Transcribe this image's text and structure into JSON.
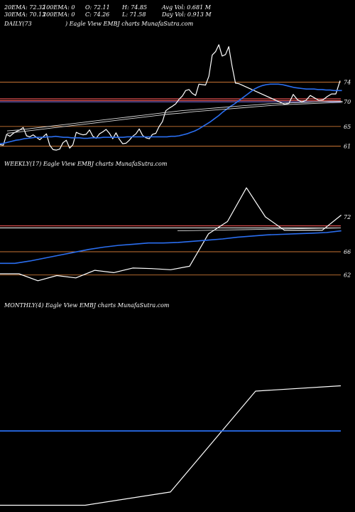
{
  "header": {
    "row1": [
      {
        "key": "ema20",
        "text": "20EMA: 72.32"
      },
      {
        "key": "ema100",
        "text": "100EMA: 0"
      },
      {
        "key": "open",
        "text": "O: 72.11"
      },
      {
        "key": "high",
        "text": "H: 74.85"
      },
      {
        "key": "avgvol",
        "text": "Avg Vol: 0.681 M"
      }
    ],
    "row2": [
      {
        "key": "ema30",
        "text": "30EMA: 70.13"
      },
      {
        "key": "ema200",
        "text": "200EMA: 0"
      },
      {
        "key": "close",
        "text": "C: 74.26"
      },
      {
        "key": "low",
        "text": "L: 71.58"
      },
      {
        "key": "dayvol",
        "text": "Day Vol: 0.913 M"
      }
    ]
  },
  "panels": {
    "daily": {
      "label": "DAILY(73",
      "watermark": ") Eagle  View  EMBJ charts MunafaSutra.com"
    },
    "weekly": {
      "label": "WEEKLY(17) Eagle  View  EMBJ charts MunafaSutra.com"
    },
    "monthly": {
      "label": "MONTHLY(4) Eagle  View  EMBJ charts MunafaSutra.com"
    }
  },
  "colors": {
    "background": "#000000",
    "price": "#ffffff",
    "ema_blue": "#2a6ef0",
    "ema_slow": "#d8d8d8",
    "level_red": "#e05050",
    "level_orange": "#c87533"
  },
  "chart_data": [
    {
      "type": "line",
      "title": "DAILY",
      "ticks": [
        74,
        70,
        65,
        61
      ],
      "ylim": [
        59.2,
        84.9
      ],
      "levels": [
        {
          "value": 74,
          "color": "#c87533"
        },
        {
          "value": 70.6,
          "color": "#e05050"
        },
        {
          "value": 70.25,
          "color": "#e05050"
        },
        {
          "value": 70.0,
          "color": "#8080ff"
        },
        {
          "value": 65,
          "color": "#c87533"
        },
        {
          "value": 61,
          "color": "#c87533"
        }
      ],
      "series": [
        {
          "role": "price",
          "color": "#ffffff",
          "values": [
            61.3,
            61.2,
            63.4,
            63.0,
            63.6,
            64.0,
            64.3,
            64.8,
            63.1,
            62.9,
            63.3,
            62.8,
            62.3,
            62.9,
            63.5,
            61.2,
            60.3,
            60.2,
            60.4,
            61.7,
            62.2,
            60.6,
            61.3,
            63.8,
            63.5,
            63.3,
            63.4,
            64.3,
            63.0,
            62.6,
            63.5,
            63.9,
            64.4,
            63.6,
            62.5,
            63.7,
            62.4,
            61.5,
            61.6,
            62.2,
            63.0,
            63.5,
            64.5,
            63.2,
            62.7,
            62.5,
            63.4,
            63.6,
            65.0,
            66.0,
            68.2,
            68.7,
            69.1,
            69.6,
            70.5,
            71.2,
            72.3,
            72.5,
            71.7,
            71.3,
            73.6,
            73.5,
            73.4,
            75.2,
            79.5,
            80.2,
            81.6,
            79.3,
            79.6,
            81.2,
            77.2,
            73.8,
            73.7
          ],
          "tail": [
            69.5,
            69.7,
            71.5,
            70.4,
            70.0,
            70.3,
            71.3,
            70.8,
            70.3,
            70.4,
            71.1,
            71.6,
            71.6,
            74.3
          ]
        },
        {
          "role": "ema_fast",
          "color": "#2a6ef0",
          "values": [
            61.5,
            61.6,
            61.8,
            62.0,
            62.2,
            62.3,
            62.5,
            62.6,
            62.7,
            62.8,
            62.8,
            62.8,
            62.9,
            62.9,
            63.0,
            62.9,
            62.8,
            62.8,
            62.7,
            62.7,
            62.7,
            62.6,
            62.6,
            62.7,
            62.7,
            62.7,
            62.8,
            62.8,
            62.8,
            62.8,
            62.8,
            62.8,
            62.9,
            62.9,
            62.9,
            62.9,
            62.9,
            62.9,
            62.9,
            62.9,
            62.9,
            62.9,
            62.9,
            63.0,
            63.0,
            63.1,
            63.3,
            63.5,
            63.8,
            64.1,
            64.5,
            65.0,
            65.5,
            66.0,
            66.6,
            67.2,
            67.9,
            68.5,
            69.1,
            69.6,
            70.2,
            70.8,
            71.4,
            72.0,
            72.6,
            73.0,
            73.3,
            73.5,
            73.6,
            73.6,
            73.6,
            73.5,
            73.3,
            73.1,
            72.9,
            72.8,
            72.7,
            72.6,
            72.6,
            72.6,
            72.5,
            72.5,
            72.4,
            72.4,
            72.3,
            72.3,
            72.3
          ]
        },
        {
          "role": "ema_slow_1",
          "color": "#d8d8d8",
          "values": [
            64.1,
            64.3,
            64.6,
            64.9,
            65.2,
            65.5,
            65.8,
            66.1,
            66.4,
            66.7,
            67.0,
            67.3,
            67.6,
            67.9,
            68.2,
            68.4,
            68.6,
            68.8,
            69.0,
            69.2,
            69.4,
            69.6,
            69.7,
            69.8,
            69.9,
            70.0,
            70.1,
            70.1
          ]
        },
        {
          "role": "ema_slow_2",
          "color": "#d8d8d8",
          "values": [
            63.6,
            63.9,
            64.2,
            64.5,
            64.8,
            65.1,
            65.4,
            65.7,
            66.0,
            66.3,
            66.6,
            66.9,
            67.2,
            67.5,
            67.7,
            68.0,
            68.2,
            68.4,
            68.6,
            68.8,
            69.0,
            69.2,
            69.4,
            69.5,
            69.6,
            69.7,
            69.8,
            69.9
          ]
        }
      ]
    },
    {
      "type": "line",
      "title": "WEEKLY",
      "ticks": [
        72,
        66,
        62
      ],
      "ylim": [
        58.9,
        80.2
      ],
      "levels": [
        {
          "value": 70.45,
          "color": "#e05050"
        },
        {
          "value": 70.1,
          "color": "#ffffff"
        },
        {
          "value": 66,
          "color": "#c87533"
        },
        {
          "value": 62,
          "color": "#c87533"
        }
      ],
      "series": [
        {
          "role": "price",
          "color": "#ffffff",
          "values": [
            62.2,
            62.2,
            61.0,
            61.9,
            61.5,
            62.8,
            62.4,
            63.2,
            63.1,
            62.9,
            63.5,
            69.1,
            71.2,
            77.0,
            72.0,
            69.7,
            69.7,
            69.7,
            72.3
          ]
        },
        {
          "role": "ema_fast",
          "color": "#2a6ef0",
          "values": [
            64.0,
            64.0,
            64.4,
            64.9,
            65.4,
            65.9,
            66.4,
            66.8,
            67.1,
            67.3,
            67.5,
            67.5,
            67.6,
            67.8,
            68.0,
            68.2,
            68.5,
            68.7,
            68.9,
            69.0,
            69.1,
            69.2,
            69.3,
            69.6
          ]
        },
        {
          "role": "ema_slow",
          "color": "#d8d8d8",
          "values": [
            69.6,
            69.7,
            69.8,
            69.9,
            70.0,
            70.1
          ]
        }
      ]
    },
    {
      "type": "line",
      "title": "MONTHLY",
      "ticks": [],
      "ylim": [
        50,
        80
      ],
      "levels": [],
      "series": [
        {
          "role": "price",
          "color": "#ffffff",
          "values": [
            50.8,
            50.8,
            52.8,
            68.0,
            68.8
          ]
        },
        {
          "role": "ema_fast",
          "color": "#2a6ef0",
          "values": [
            62.0
          ]
        }
      ]
    }
  ]
}
